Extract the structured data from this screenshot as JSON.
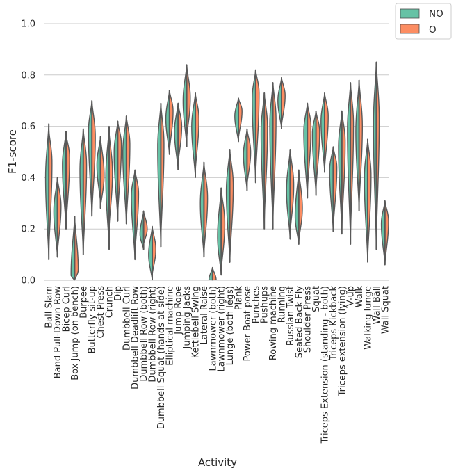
{
  "chart_data": {
    "type": "split violin",
    "xlabel": "Activity",
    "ylabel": "F1-score",
    "ylim": [
      0.0,
      1.0
    ],
    "yticks": [
      "0.0",
      "0.2",
      "0.4",
      "0.6",
      "0.8",
      "1.0"
    ],
    "grid": "horizontal",
    "legend_position": "top-right",
    "categories": [
      "Ball Slam",
      "Band Pull-Down Row",
      "Bicep Curl",
      "Box Jump (on bench)",
      "Burpee",
      "Butterfly sit-up",
      "Chest Press",
      "Crunch",
      "Dip",
      "Dumbbell Curl",
      "Dumbbell Deadlift Row",
      "Dumbbell Row (both)",
      "Dumbbell Row (right)",
      "Dumbbell Squat (hands at side)",
      "Elliptical machine",
      "Jump Rope",
      "Jumping Jacks",
      "Kettlebell Swing",
      "Lateral Raise",
      "Lawnmower (both)",
      "Lawnmower (right)",
      "Lunge (both legs)",
      "Plank",
      "Power Boat pose",
      "Punches",
      "Pushups",
      "Rowing machine",
      "Running",
      "Russian Twist",
      "Seated Back Fly",
      "Shoulder Press",
      "Squat",
      "Triceps Extension (standing - both)",
      "Triceps Kickback",
      "Triceps extension (lying)",
      "V-up",
      "Walk",
      "Walking lunge",
      "Wall Ball",
      "Wall Squat"
    ],
    "series": [
      {
        "name": "NO",
        "color": "#66c2a5",
        "min": [
          0.08,
          0.09,
          0.2,
          0.0,
          0.1,
          0.25,
          0.3,
          0.12,
          0.23,
          0.22,
          0.08,
          0.12,
          0.0,
          0.13,
          0.49,
          0.43,
          0.52,
          0.4,
          0.09,
          0.0,
          0.02,
          0.07,
          0.54,
          0.35,
          0.38,
          0.2,
          0.2,
          0.59,
          0.16,
          0.14,
          0.32,
          0.33,
          0.42,
          0.19,
          0.18,
          0.14,
          0.27,
          0.07,
          0.12,
          0.06
        ],
        "median": [
          0.4,
          0.27,
          0.45,
          0.02,
          0.43,
          0.58,
          0.45,
          0.4,
          0.5,
          0.5,
          0.33,
          0.18,
          0.1,
          0.52,
          0.63,
          0.58,
          0.7,
          0.6,
          0.3,
          0.0,
          0.17,
          0.35,
          0.64,
          0.49,
          0.71,
          0.58,
          0.61,
          0.7,
          0.35,
          0.25,
          0.58,
          0.57,
          0.62,
          0.43,
          0.52,
          0.59,
          0.58,
          0.4,
          0.61,
          0.22
        ],
        "max": [
          0.61,
          0.4,
          0.58,
          0.25,
          0.59,
          0.7,
          0.56,
          0.6,
          0.62,
          0.64,
          0.43,
          0.27,
          0.21,
          0.69,
          0.74,
          0.69,
          0.84,
          0.73,
          0.46,
          0.05,
          0.36,
          0.51,
          0.71,
          0.59,
          0.82,
          0.73,
          0.77,
          0.79,
          0.51,
          0.43,
          0.69,
          0.66,
          0.73,
          0.52,
          0.66,
          0.77,
          0.78,
          0.55,
          0.85,
          0.31
        ]
      },
      {
        "name": "O",
        "color": "#fc8d62",
        "min": [
          0.1,
          0.1,
          0.2,
          0.0,
          0.1,
          0.25,
          0.28,
          0.2,
          0.25,
          0.22,
          0.1,
          0.14,
          0.02,
          0.15,
          0.5,
          0.45,
          0.55,
          0.42,
          0.1,
          0.0,
          0.03,
          0.07,
          0.55,
          0.37,
          0.4,
          0.22,
          0.22,
          0.6,
          0.18,
          0.15,
          0.34,
          0.35,
          0.43,
          0.2,
          0.2,
          0.16,
          0.28,
          0.08,
          0.14,
          0.06
        ],
        "median": [
          0.46,
          0.29,
          0.48,
          0.04,
          0.45,
          0.56,
          0.41,
          0.42,
          0.53,
          0.53,
          0.34,
          0.2,
          0.12,
          0.53,
          0.66,
          0.6,
          0.71,
          0.63,
          0.32,
          0.0,
          0.22,
          0.37,
          0.66,
          0.5,
          0.73,
          0.6,
          0.63,
          0.72,
          0.37,
          0.28,
          0.6,
          0.58,
          0.64,
          0.44,
          0.54,
          0.61,
          0.6,
          0.41,
          0.63,
          0.23
        ],
        "max": [
          0.59,
          0.4,
          0.57,
          0.25,
          0.59,
          0.7,
          0.56,
          0.58,
          0.62,
          0.64,
          0.43,
          0.27,
          0.21,
          0.69,
          0.74,
          0.69,
          0.84,
          0.73,
          0.46,
          0.05,
          0.36,
          0.51,
          0.71,
          0.59,
          0.82,
          0.73,
          0.77,
          0.79,
          0.51,
          0.43,
          0.69,
          0.66,
          0.73,
          0.52,
          0.66,
          0.77,
          0.78,
          0.55,
          0.85,
          0.31
        ]
      }
    ]
  }
}
